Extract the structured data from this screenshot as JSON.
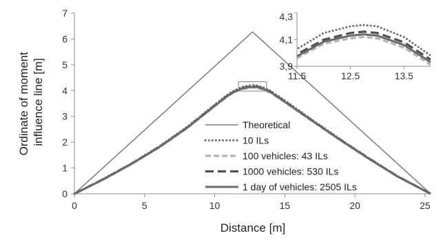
{
  "chart_data": [
    {
      "type": "line",
      "title": "",
      "xlabel": "Distance [m]",
      "ylabel": "Ordinate of moment influence line [m]",
      "ylabel_lines": [
        "Ordinate of moment",
        "influence line [m]"
      ],
      "xlim": [
        0,
        25.4
      ],
      "ylim": [
        0,
        7
      ],
      "xticks": [
        0,
        5,
        10,
        15,
        20,
        25
      ],
      "yticks": [
        0,
        1,
        2,
        3,
        4,
        5,
        6,
        7
      ],
      "grid": false,
      "legend_position": "center",
      "series": [
        {
          "name": "Theoretical",
          "style": "solid-thin",
          "color": "#808080",
          "x": [
            0,
            12.7,
            25.4
          ],
          "y": [
            0,
            6.27,
            0
          ]
        },
        {
          "name": "10 ILs",
          "style": "dotted",
          "color": "#6e6e6e",
          "x": [
            0,
            2,
            4,
            6,
            8,
            10,
            11,
            11.5,
            12,
            12.5,
            12.75,
            13,
            13.5,
            14,
            15,
            17,
            19,
            21,
            23,
            25.4
          ],
          "y": [
            0,
            0.56,
            1.16,
            1.82,
            2.58,
            3.45,
            3.88,
            4.03,
            4.15,
            4.2,
            4.21,
            4.2,
            4.12,
            3.98,
            3.62,
            2.85,
            2.1,
            1.38,
            0.7,
            0
          ]
        },
        {
          "name": "100 vehicles: 43 ILs",
          "style": "dashed-light",
          "color": "#b4b4b4",
          "x": [
            0,
            2,
            4,
            6,
            8,
            10,
            11,
            11.5,
            12,
            12.5,
            12.75,
            13,
            13.5,
            14,
            15,
            17,
            19,
            21,
            23,
            25.4
          ],
          "y": [
            0,
            0.54,
            1.13,
            1.78,
            2.53,
            3.39,
            3.81,
            3.96,
            4.07,
            4.11,
            4.12,
            4.11,
            4.04,
            3.91,
            3.55,
            2.8,
            2.06,
            1.35,
            0.68,
            0
          ]
        },
        {
          "name": "1000 vehicles: 530 ILs",
          "style": "dashed-dark",
          "color": "#505050",
          "x": [
            0,
            2,
            4,
            6,
            8,
            10,
            11,
            11.5,
            12,
            12.5,
            12.75,
            13,
            13.5,
            14,
            15,
            17,
            19,
            21,
            23,
            25.4
          ],
          "y": [
            0,
            0.55,
            1.14,
            1.8,
            2.55,
            3.42,
            3.84,
            3.99,
            4.1,
            4.15,
            4.16,
            4.15,
            4.08,
            3.95,
            3.58,
            2.82,
            2.08,
            1.37,
            0.69,
            0
          ]
        },
        {
          "name": "1 day of vehicles: 2505 ILs",
          "style": "solid-thick",
          "color": "#6a6a6a",
          "x": [
            0,
            2,
            4,
            6,
            8,
            10,
            11,
            11.5,
            12,
            12.5,
            12.75,
            13,
            13.5,
            14,
            15,
            17,
            19,
            21,
            23,
            25.4
          ],
          "y": [
            0,
            0.54,
            1.135,
            1.79,
            2.54,
            3.405,
            3.825,
            3.975,
            4.085,
            4.13,
            4.14,
            4.13,
            4.06,
            3.93,
            3.565,
            2.81,
            2.07,
            1.36,
            0.685,
            0
          ]
        }
      ]
    },
    {
      "type": "line",
      "title": "",
      "xlabel": "",
      "ylabel": "",
      "xlim": [
        11.5,
        14.0
      ],
      "ylim": [
        3.9,
        4.3
      ],
      "xticks": [
        "11.5",
        "12.5",
        "13.5"
      ],
      "xtick_values": [
        11.5,
        12.5,
        13.5
      ],
      "yticks": [
        "3,9",
        "4,1",
        "4,3"
      ],
      "ytick_values": [
        3.9,
        4.1,
        4.3
      ],
      "grid": false,
      "legend_position": "none"
    }
  ]
}
